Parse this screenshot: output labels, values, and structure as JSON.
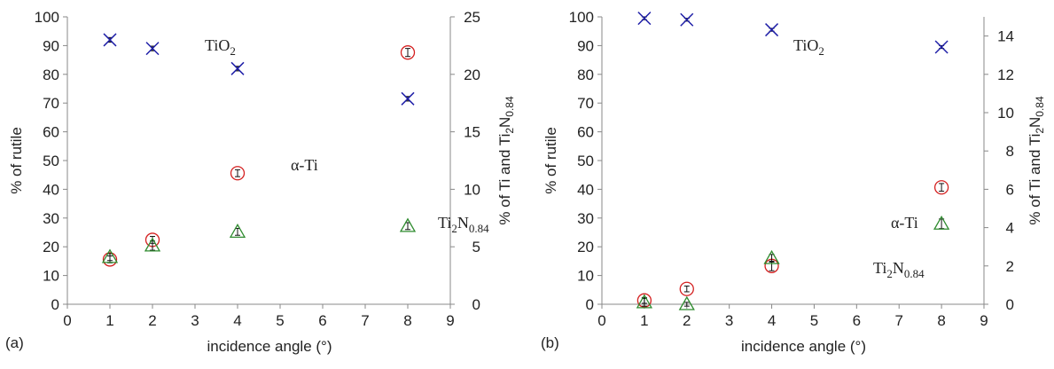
{
  "chart_data": [
    {
      "type": "scatter",
      "panel_label": "(a)",
      "xlabel": "incidence angle (°)",
      "ylabel": "% of rutile",
      "y2label_main": "% of Ti and Ti",
      "y2label_sub": "2",
      "y2label_main2": "N",
      "y2label_sub2": "0.84",
      "xlim": [
        0,
        9
      ],
      "ylim": [
        0,
        100
      ],
      "y2lim": [
        0,
        25
      ],
      "xticks": [
        "0",
        "1",
        "2",
        "3",
        "4",
        "5",
        "6",
        "7",
        "8",
        "9"
      ],
      "yticks": [
        "0",
        "10",
        "20",
        "30",
        "40",
        "50",
        "60",
        "70",
        "80",
        "90",
        "100"
      ],
      "y2ticks": [
        "0",
        "5",
        "10",
        "15",
        "20",
        "25"
      ],
      "series": [
        {
          "name": "TiO2",
          "label_main": "TiO",
          "label_sub": "2",
          "axis": "left",
          "marker": "x",
          "color": "#1f1fa8",
          "x": [
            1,
            2,
            4,
            8
          ],
          "y": [
            92,
            89,
            82,
            71.5
          ],
          "err": [
            0.8,
            0.8,
            0.8,
            0.8
          ]
        },
        {
          "name": "α-Ti",
          "label_main": "α-Ti",
          "label_sub": "",
          "axis": "right",
          "marker": "circle",
          "color": "#d42020",
          "x": [
            1,
            2,
            4,
            8
          ],
          "y": [
            3.9,
            5.6,
            11.4,
            21.9
          ],
          "err": [
            0.3,
            0.3,
            0.3,
            0.35
          ]
        },
        {
          "name": "Ti2N0.84",
          "label_main": "Ti",
          "label_sub": "2",
          "label_main2": "N",
          "label_sub2": "0.84",
          "axis": "right",
          "marker": "triangle",
          "color": "#2e8b2e",
          "x": [
            1,
            2,
            4,
            8
          ],
          "y": [
            4.1,
            5.1,
            6.3,
            6.8
          ],
          "err": [
            0.3,
            0.4,
            0.3,
            0.3
          ]
        }
      ]
    },
    {
      "type": "scatter",
      "panel_label": "(b)",
      "xlabel": "incidence angle (°)",
      "ylabel": "% of rutile",
      "y2label_main": "% of Ti and Ti",
      "y2label_sub": "2",
      "y2label_main2": "N",
      "y2label_sub2": "0.84",
      "xlim": [
        0,
        9
      ],
      "ylim": [
        0,
        100
      ],
      "y2lim": [
        0,
        15
      ],
      "xticks": [
        "0",
        "1",
        "2",
        "3",
        "4",
        "5",
        "6",
        "7",
        "8",
        "9"
      ],
      "yticks": [
        "0",
        "10",
        "20",
        "30",
        "40",
        "50",
        "60",
        "70",
        "80",
        "90",
        "100"
      ],
      "y2ticks": [
        "0",
        "2",
        "4",
        "6",
        "8",
        "10",
        "12",
        "14"
      ],
      "series": [
        {
          "name": "TiO2",
          "label_main": "TiO",
          "label_sub": "2",
          "axis": "left",
          "marker": "x",
          "color": "#1f1fa8",
          "x": [
            1,
            2,
            4,
            8
          ],
          "y": [
            99.5,
            99,
            95.5,
            89.5
          ],
          "err": [
            0.5,
            0.5,
            0.5,
            0.5
          ]
        },
        {
          "name": "α-Ti",
          "label_main": "α-Ti",
          "label_sub": "",
          "axis": "right",
          "marker": "circle",
          "color": "#d42020",
          "x": [
            1,
            2,
            4,
            8
          ],
          "y": [
            0.2,
            0.8,
            2.0,
            6.1
          ],
          "err": [
            0.15,
            0.15,
            0.25,
            0.2
          ]
        },
        {
          "name": "Ti2N0.84",
          "label_main": "Ti",
          "label_sub": "2",
          "label_main2": "N",
          "label_sub2": "0.84",
          "axis": "right",
          "marker": "triangle",
          "color": "#2e8b2e",
          "x": [
            1,
            2,
            4,
            8
          ],
          "y": [
            0.1,
            0.0,
            2.4,
            4.2
          ],
          "err": [
            0.2,
            0.1,
            0.2,
            0.25
          ]
        }
      ]
    }
  ]
}
